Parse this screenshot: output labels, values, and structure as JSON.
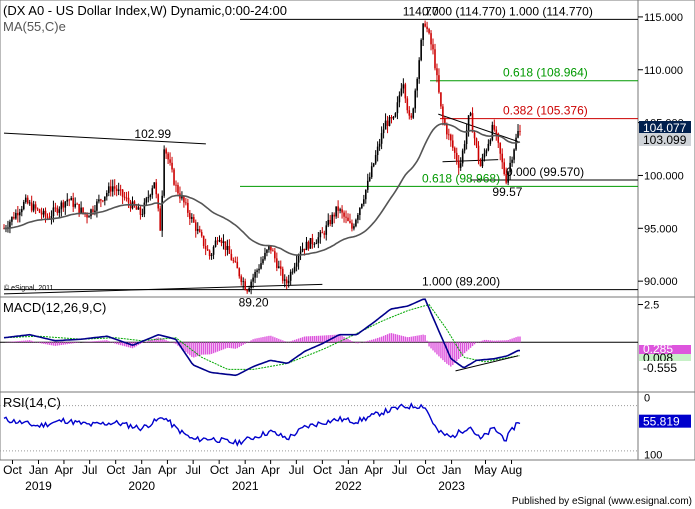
{
  "header": {
    "title": "(DX A0 - US Dollar Index,W) Dynamic,0:00-24:00",
    "ma_label": "MA(55,C)e"
  },
  "copyright": "© eSignal, 2011",
  "footer": "Published by eSignal (www.esignal.com)",
  "colors": {
    "up": "#000000",
    "down": "#cc0000",
    "ma": "#555555",
    "fib_red": "#cc0000",
    "fib_green": "#009900",
    "macd": "#00008b",
    "signal": "#00a800",
    "hist": "#dd55dd",
    "rsi": "#0000cc",
    "price_box": "#001f4d"
  },
  "chart_data": [
    {
      "type": "candlestick",
      "name": "price",
      "ylim": [
        88.5,
        116.6
      ],
      "yticks": [
        90,
        95,
        100,
        105,
        110,
        115
      ],
      "ytick_labels": [
        "90.000",
        "95.000",
        "100.000",
        "105.000",
        "110.000",
        "115.000"
      ],
      "x_range": [
        "2018-09-01",
        "2023-08-31"
      ],
      "ma_label": "MA(55,C)e",
      "price_readouts": [
        "104.077",
        "103.099"
      ],
      "key_points": [
        {
          "date": "2018-09-01",
          "price": 95.0
        },
        {
          "date": "2018-11-15",
          "price": 97.5
        },
        {
          "date": "2019-02-01",
          "price": 96.0
        },
        {
          "date": "2019-04-15",
          "price": 97.8
        },
        {
          "date": "2019-06-20",
          "price": 96.2
        },
        {
          "date": "2019-09-20",
          "price": 99.0
        },
        {
          "date": "2019-11-15",
          "price": 97.5
        },
        {
          "date": "2019-12-31",
          "price": 96.3
        },
        {
          "date": "2020-02-15",
          "price": 99.5
        },
        {
          "date": "2020-03-09",
          "price": 94.6
        },
        {
          "date": "2020-03-20",
          "price": 102.99
        },
        {
          "date": "2020-04-30",
          "price": 99.0
        },
        {
          "date": "2020-06-15",
          "price": 96.5
        },
        {
          "date": "2020-08-31",
          "price": 92.3
        },
        {
          "date": "2020-09-30",
          "price": 94.5
        },
        {
          "date": "2020-12-31",
          "price": 89.7
        },
        {
          "date": "2021-01-06",
          "price": 89.2
        },
        {
          "date": "2021-03-31",
          "price": 93.3
        },
        {
          "date": "2021-05-25",
          "price": 89.6
        },
        {
          "date": "2021-07-15",
          "price": 93.0
        },
        {
          "date": "2021-09-30",
          "price": 94.3
        },
        {
          "date": "2021-11-25",
          "price": 96.9
        },
        {
          "date": "2022-01-15",
          "price": 95.0
        },
        {
          "date": "2022-03-10",
          "price": 99.0
        },
        {
          "date": "2022-05-13",
          "price": 105.0
        },
        {
          "date": "2022-06-15",
          "price": 105.2
        },
        {
          "date": "2022-07-14",
          "price": 109.3
        },
        {
          "date": "2022-08-10",
          "price": 104.6
        },
        {
          "date": "2022-09-28",
          "price": 114.77
        },
        {
          "date": "2022-10-31",
          "price": 111.5
        },
        {
          "date": "2022-11-30",
          "price": 105.5
        },
        {
          "date": "2023-01-15",
          "price": 102.0
        },
        {
          "date": "2023-02-01",
          "price": 100.8
        },
        {
          "date": "2023-03-08",
          "price": 105.88
        },
        {
          "date": "2023-04-14",
          "price": 100.8
        },
        {
          "date": "2023-05-31",
          "price": 104.7
        },
        {
          "date": "2023-07-14",
          "price": 99.57
        },
        {
          "date": "2023-08-25",
          "price": 104.077
        }
      ],
      "lines": [
        {
          "type": "trendline",
          "from": {
            "date": "2018-09-01",
            "price": 104.0
          },
          "to": {
            "date": "2020-08-15",
            "price": 102.99
          }
        },
        {
          "type": "trendline",
          "from": {
            "date": "2018-09-01",
            "price": 88.8
          },
          "to": {
            "date": "2021-10-01",
            "price": 89.7
          }
        },
        {
          "type": "trendline",
          "from": {
            "date": "2022-11-15",
            "price": 105.8
          },
          "to": {
            "date": "2023-08-25",
            "price": 103.2
          }
        },
        {
          "type": "trendline",
          "from": {
            "date": "2022-11-30",
            "price": 101.3
          },
          "to": {
            "date": "2023-06-15",
            "price": 101.5
          }
        }
      ],
      "fib_levels": [
        {
          "label": "0.000 (114.770)",
          "price": 114.77,
          "color": "black"
        },
        {
          "label": "0.618 (108.964)",
          "price": 108.964,
          "color": "green"
        },
        {
          "label": "0.382 (105.376)",
          "price": 105.376,
          "color": "red"
        },
        {
          "label": "0.000 (99.570)",
          "price": 99.57,
          "color": "black"
        },
        {
          "label": "0.618 (98.968)",
          "price": 98.968,
          "color": "green"
        },
        {
          "label": "1.000 (89.200)",
          "price": 89.2,
          "color": "black"
        },
        {
          "label": "1.000 (114.770)",
          "price": 114.77,
          "color": "black"
        }
      ],
      "annotations": [
        {
          "text": "102.99",
          "date": "2020-02-15",
          "price": 102.99
        },
        {
          "text": "89.20",
          "date": "2021-01-06",
          "price": 89.2
        },
        {
          "text": "114.77",
          "date": "2022-09-28",
          "price": 114.77
        },
        {
          "text": "99.57",
          "date": "2023-07-14",
          "price": 99.57
        }
      ]
    },
    {
      "type": "macd",
      "name": "MACD(12,26,9,C)",
      "label": "MACD(12,26,9,C)",
      "ylim": [
        -3.3,
        3.0
      ],
      "yticks": [
        2.5
      ],
      "ytick_labels": [
        "2.5"
      ],
      "readouts": [
        "0.285",
        "0.008",
        "-0.555"
      ],
      "macd_points": [
        {
          "date": "2018-09-01",
          "v": 0.3
        },
        {
          "date": "2018-12-01",
          "v": 0.5
        },
        {
          "date": "2019-03-01",
          "v": 0.1
        },
        {
          "date": "2019-06-01",
          "v": 0.2
        },
        {
          "date": "2019-09-01",
          "v": 0.4
        },
        {
          "date": "2019-12-01",
          "v": -0.2
        },
        {
          "date": "2020-03-01",
          "v": 0.5
        },
        {
          "date": "2020-05-01",
          "v": 0.2
        },
        {
          "date": "2020-07-01",
          "v": -1.5
        },
        {
          "date": "2020-09-01",
          "v": -2.0
        },
        {
          "date": "2020-12-01",
          "v": -2.2
        },
        {
          "date": "2021-02-01",
          "v": -1.6
        },
        {
          "date": "2021-04-01",
          "v": -1.2
        },
        {
          "date": "2021-06-01",
          "v": -1.4
        },
        {
          "date": "2021-08-01",
          "v": -0.6
        },
        {
          "date": "2021-10-01",
          "v": -0.1
        },
        {
          "date": "2021-12-01",
          "v": 0.5
        },
        {
          "date": "2022-02-01",
          "v": 0.5
        },
        {
          "date": "2022-04-01",
          "v": 1.3
        },
        {
          "date": "2022-06-01",
          "v": 2.2
        },
        {
          "date": "2022-08-01",
          "v": 2.4
        },
        {
          "date": "2022-09-30",
          "v": 2.9
        },
        {
          "date": "2022-11-15",
          "v": 0.9
        },
        {
          "date": "2023-01-01",
          "v": -1.1
        },
        {
          "date": "2023-02-15",
          "v": -1.7
        },
        {
          "date": "2023-04-01",
          "v": -1.2
        },
        {
          "date": "2023-06-01",
          "v": -1.1
        },
        {
          "date": "2023-07-20",
          "v": -0.9
        },
        {
          "date": "2023-08-25",
          "v": -0.555
        }
      ],
      "signal_points": [
        {
          "date": "2018-09-01",
          "v": 0.3
        },
        {
          "date": "2019-01-01",
          "v": 0.4
        },
        {
          "date": "2019-06-01",
          "v": 0.2
        },
        {
          "date": "2019-10-01",
          "v": 0.3
        },
        {
          "date": "2020-01-01",
          "v": 0.1
        },
        {
          "date": "2020-05-01",
          "v": 0.3
        },
        {
          "date": "2020-08-01",
          "v": -1.0
        },
        {
          "date": "2020-11-01",
          "v": -1.8
        },
        {
          "date": "2021-02-01",
          "v": -1.8
        },
        {
          "date": "2021-06-01",
          "v": -1.4
        },
        {
          "date": "2021-10-01",
          "v": -0.5
        },
        {
          "date": "2022-01-01",
          "v": 0.3
        },
        {
          "date": "2022-05-01",
          "v": 1.4
        },
        {
          "date": "2022-08-01",
          "v": 2.1
        },
        {
          "date": "2022-10-15",
          "v": 2.5
        },
        {
          "date": "2022-12-15",
          "v": 0.9
        },
        {
          "date": "2023-02-15",
          "v": -1.0
        },
        {
          "date": "2023-05-01",
          "v": -1.3
        },
        {
          "date": "2023-08-25",
          "v": -0.9
        }
      ],
      "divergence_line": {
        "from": {
          "date": "2023-01-15",
          "v": -1.9
        },
        "to": {
          "date": "2023-08-25",
          "v": -0.9
        }
      }
    },
    {
      "type": "line",
      "name": "RSI(14,C)",
      "label": "RSI(14,C)",
      "ylim": [
        22,
        82
      ],
      "yticks": [
        0,
        100
      ],
      "ytick_labels": [
        "0",
        "100"
      ],
      "readouts": [
        "55.819"
      ],
      "rsi_points": [
        {
          "date": "2018-09-01",
          "v": 58
        },
        {
          "date": "2018-11-01",
          "v": 55
        },
        {
          "date": "2019-01-01",
          "v": 52
        },
        {
          "date": "2019-04-01",
          "v": 57
        },
        {
          "date": "2019-07-01",
          "v": 53
        },
        {
          "date": "2019-10-01",
          "v": 55
        },
        {
          "date": "2020-01-01",
          "v": 50
        },
        {
          "date": "2020-03-20",
          "v": 60
        },
        {
          "date": "2020-05-01",
          "v": 50
        },
        {
          "date": "2020-07-01",
          "v": 40
        },
        {
          "date": "2020-09-01",
          "v": 41
        },
        {
          "date": "2020-12-01",
          "v": 37
        },
        {
          "date": "2021-02-01",
          "v": 42
        },
        {
          "date": "2021-04-01",
          "v": 47
        },
        {
          "date": "2021-06-01",
          "v": 41
        },
        {
          "date": "2021-08-01",
          "v": 51
        },
        {
          "date": "2021-10-01",
          "v": 55
        },
        {
          "date": "2021-12-01",
          "v": 58
        },
        {
          "date": "2022-02-01",
          "v": 56
        },
        {
          "date": "2022-05-01",
          "v": 64
        },
        {
          "date": "2022-07-14",
          "v": 69
        },
        {
          "date": "2022-09-28",
          "v": 70
        },
        {
          "date": "2022-11-15",
          "v": 47
        },
        {
          "date": "2023-01-01",
          "v": 42
        },
        {
          "date": "2023-03-08",
          "v": 52
        },
        {
          "date": "2023-04-14",
          "v": 40
        },
        {
          "date": "2023-06-01",
          "v": 50
        },
        {
          "date": "2023-07-14",
          "v": 40
        },
        {
          "date": "2023-08-25",
          "v": 55.819
        }
      ]
    }
  ],
  "time_axis": {
    "month_labels": [
      {
        "text": "Oct",
        "date": "2018-10-01"
      },
      {
        "text": "Jan",
        "date": "2019-01-01"
      },
      {
        "text": "Apr",
        "date": "2019-04-01"
      },
      {
        "text": "Jul",
        "date": "2019-07-01"
      },
      {
        "text": "Oct",
        "date": "2019-10-01"
      },
      {
        "text": "Jan",
        "date": "2020-01-01"
      },
      {
        "text": "Apr",
        "date": "2020-04-01"
      },
      {
        "text": "Jul",
        "date": "2020-07-01"
      },
      {
        "text": "Oct",
        "date": "2020-10-01"
      },
      {
        "text": "Jan",
        "date": "2021-01-01"
      },
      {
        "text": "Apr",
        "date": "2021-04-01"
      },
      {
        "text": "Jul",
        "date": "2021-07-01"
      },
      {
        "text": "Oct",
        "date": "2021-10-01"
      },
      {
        "text": "Jan",
        "date": "2022-01-01"
      },
      {
        "text": "Apr",
        "date": "2022-04-01"
      },
      {
        "text": "Jul",
        "date": "2022-07-01"
      },
      {
        "text": "Oct",
        "date": "2022-10-01"
      },
      {
        "text": "Jan",
        "date": "2023-01-01"
      },
      {
        "text": "May",
        "date": "2023-05-01"
      },
      {
        "text": "Aug",
        "date": "2023-08-01"
      }
    ],
    "year_labels": [
      {
        "text": "2019",
        "date": "2019-01-01"
      },
      {
        "text": "2020",
        "date": "2020-01-01"
      },
      {
        "text": "2021",
        "date": "2021-01-01"
      },
      {
        "text": "2022",
        "date": "2022-01-01"
      },
      {
        "text": "2023",
        "date": "2023-01-01"
      }
    ]
  }
}
